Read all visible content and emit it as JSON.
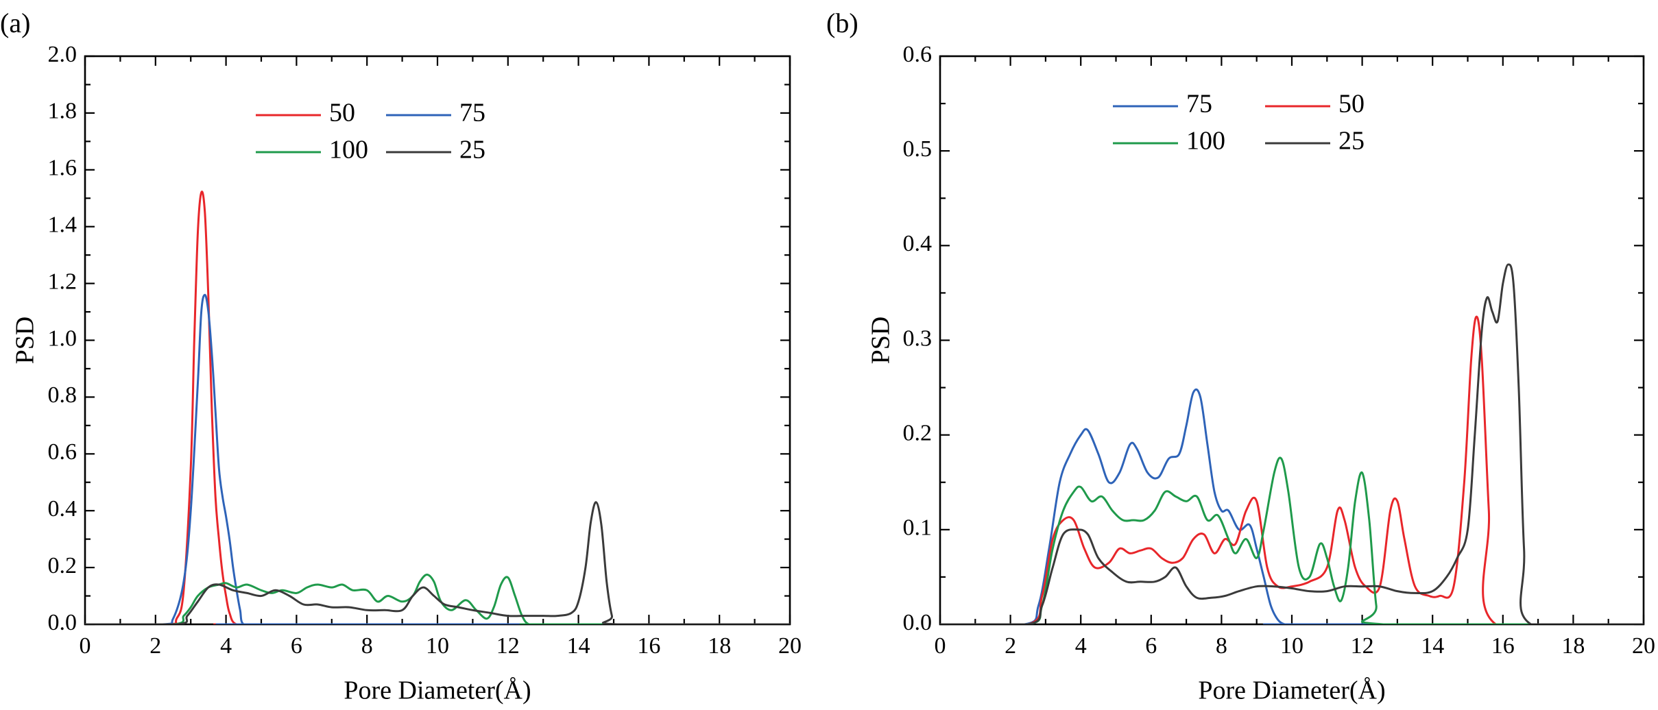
{
  "chart_data": [
    {
      "type": "line",
      "panel_label": "(a)",
      "xlabel": "Pore Diameter(Å)",
      "ylabel": "PSD",
      "xlim": [
        0,
        20
      ],
      "ylim": [
        0,
        2.0
      ],
      "xticks": [
        "0",
        "2",
        "4",
        "6",
        "8",
        "10",
        "12",
        "14",
        "16",
        "18",
        "20"
      ],
      "yticks": [
        "0.0",
        "0.2",
        "0.4",
        "0.6",
        "0.8",
        "1.0",
        "1.2",
        "1.4",
        "1.6",
        "1.8",
        "2.0"
      ],
      "legend_placement": "top-center",
      "legend_columns": 2,
      "series": [
        {
          "name": "50",
          "color": "#e8262a",
          "x": [
            0,
            2.3,
            2.6,
            2.8,
            3.0,
            3.1,
            3.2,
            3.3,
            3.4,
            3.5,
            3.6,
            3.7,
            3.8,
            3.9,
            4.0,
            4.1,
            4.3,
            5,
            20
          ],
          "y": [
            0,
            0,
            0.02,
            0.12,
            0.55,
            1.0,
            1.38,
            1.52,
            1.45,
            1.15,
            0.75,
            0.45,
            0.3,
            0.18,
            0.1,
            0.04,
            0,
            0,
            0
          ]
        },
        {
          "name": "75",
          "color": "#2e63b8",
          "x": [
            0,
            2.2,
            2.5,
            2.8,
            3.0,
            3.2,
            3.3,
            3.4,
            3.5,
            3.6,
            3.7,
            3.8,
            3.9,
            4.0,
            4.1,
            4.2,
            4.3,
            4.4,
            4.5,
            5,
            20
          ],
          "y": [
            0,
            0,
            0.02,
            0.15,
            0.4,
            0.85,
            1.1,
            1.16,
            1.1,
            0.95,
            0.75,
            0.55,
            0.45,
            0.38,
            0.3,
            0.2,
            0.12,
            0.05,
            0,
            0,
            0
          ]
        },
        {
          "name": "100",
          "color": "#1f9a4b",
          "x": [
            0,
            2.5,
            2.8,
            3.0,
            3.2,
            3.5,
            3.8,
            4.0,
            4.3,
            4.6,
            5.0,
            5.3,
            5.6,
            6.0,
            6.3,
            6.6,
            7.0,
            7.3,
            7.6,
            8.0,
            8.3,
            8.6,
            9.0,
            9.3,
            9.5,
            9.7,
            9.9,
            10.1,
            10.4,
            10.8,
            11.1,
            11.4,
            11.6,
            11.8,
            12.0,
            12.2,
            12.4,
            12.6,
            13,
            20
          ],
          "y": [
            0,
            0,
            0.03,
            0.06,
            0.1,
            0.13,
            0.14,
            0.145,
            0.13,
            0.14,
            0.12,
            0.11,
            0.12,
            0.11,
            0.13,
            0.14,
            0.13,
            0.14,
            0.12,
            0.12,
            0.08,
            0.1,
            0.08,
            0.1,
            0.15,
            0.175,
            0.15,
            0.08,
            0.05,
            0.085,
            0.05,
            0.02,
            0.06,
            0.14,
            0.165,
            0.1,
            0.03,
            0,
            0,
            0
          ]
        },
        {
          "name": "25",
          "color": "#3a3a3a",
          "x": [
            0,
            2.6,
            2.9,
            3.2,
            3.5,
            3.8,
            4.2,
            4.6,
            5.0,
            5.4,
            5.8,
            6.2,
            6.6,
            7.0,
            7.5,
            8.0,
            8.5,
            9.0,
            9.3,
            9.6,
            9.9,
            10.2,
            10.6,
            11.0,
            11.5,
            12.0,
            12.5,
            13.0,
            13.4,
            13.8,
            14.0,
            14.2,
            14.35,
            14.5,
            14.65,
            14.8,
            14.95,
            15.1,
            20
          ],
          "y": [
            0,
            0,
            0.03,
            0.08,
            0.13,
            0.14,
            0.12,
            0.11,
            0.1,
            0.12,
            0.1,
            0.07,
            0.07,
            0.06,
            0.06,
            0.05,
            0.05,
            0.05,
            0.1,
            0.13,
            0.1,
            0.07,
            0.06,
            0.05,
            0.04,
            0.03,
            0.03,
            0.03,
            0.03,
            0.04,
            0.08,
            0.2,
            0.36,
            0.43,
            0.35,
            0.15,
            0.03,
            0,
            0
          ]
        }
      ]
    },
    {
      "type": "line",
      "panel_label": "(b)",
      "xlabel": "Pore Diameter(Å)",
      "ylabel": "PSD",
      "xlim": [
        0,
        20
      ],
      "ylim": [
        0,
        0.6
      ],
      "xticks": [
        "0",
        "2",
        "4",
        "6",
        "8",
        "10",
        "12",
        "14",
        "16",
        "18",
        "20"
      ],
      "yticks": [
        "0.0",
        "0.1",
        "0.2",
        "0.3",
        "0.4",
        "0.5",
        "0.6"
      ],
      "legend_placement": "top-center",
      "legend_columns": 2,
      "series": [
        {
          "name": "75",
          "color": "#2e63b8",
          "x": [
            0,
            2.4,
            2.8,
            3.1,
            3.4,
            3.7,
            4.0,
            4.2,
            4.5,
            4.8,
            5.1,
            5.4,
            5.6,
            5.9,
            6.2,
            6.5,
            6.8,
            7.0,
            7.2,
            7.4,
            7.6,
            7.8,
            8.0,
            8.2,
            8.5,
            8.8,
            9.0,
            9.2,
            9.4,
            9.6,
            9.8,
            10,
            20
          ],
          "y": [
            0,
            0,
            0.02,
            0.08,
            0.15,
            0.18,
            0.2,
            0.205,
            0.18,
            0.15,
            0.16,
            0.19,
            0.185,
            0.16,
            0.155,
            0.175,
            0.18,
            0.21,
            0.245,
            0.24,
            0.19,
            0.14,
            0.12,
            0.12,
            0.1,
            0.105,
            0.08,
            0.05,
            0.02,
            0.005,
            0,
            0,
            0
          ]
        },
        {
          "name": "50",
          "color": "#e8262a",
          "x": [
            0,
            2.5,
            2.9,
            3.2,
            3.5,
            3.8,
            4.1,
            4.4,
            4.8,
            5.1,
            5.4,
            5.7,
            6.0,
            6.3,
            6.6,
            6.9,
            7.2,
            7.5,
            7.8,
            8.1,
            8.4,
            8.7,
            9.0,
            9.3,
            9.6,
            10.0,
            10.5,
            11.0,
            11.3,
            11.5,
            11.8,
            12.1,
            12.5,
            12.8,
            13.0,
            13.2,
            13.5,
            13.9,
            14.2,
            14.6,
            14.9,
            15.1,
            15.25,
            15.4,
            15.6,
            15.8,
            20
          ],
          "y": [
            0,
            0,
            0.03,
            0.09,
            0.11,
            0.11,
            0.08,
            0.06,
            0.065,
            0.08,
            0.075,
            0.078,
            0.08,
            0.07,
            0.065,
            0.07,
            0.09,
            0.095,
            0.075,
            0.09,
            0.085,
            0.12,
            0.13,
            0.06,
            0.04,
            0.04,
            0.045,
            0.06,
            0.12,
            0.11,
            0.06,
            0.04,
            0.04,
            0.12,
            0.13,
            0.09,
            0.04,
            0.03,
            0.03,
            0.04,
            0.15,
            0.28,
            0.325,
            0.28,
            0.12,
            0,
            0
          ]
        },
        {
          "name": "100",
          "color": "#1f9a4b",
          "x": [
            0,
            2.5,
            2.9,
            3.2,
            3.5,
            3.8,
            4.0,
            4.3,
            4.6,
            4.9,
            5.2,
            5.5,
            5.8,
            6.1,
            6.4,
            6.7,
            7.0,
            7.3,
            7.6,
            7.9,
            8.2,
            8.4,
            8.7,
            9.0,
            9.2,
            9.5,
            9.7,
            9.9,
            10.2,
            10.5,
            10.8,
            11.0,
            11.2,
            11.4,
            11.6,
            11.8,
            12.0,
            12.2,
            12.4,
            12.6,
            20
          ],
          "y": [
            0,
            0,
            0.02,
            0.08,
            0.12,
            0.14,
            0.145,
            0.13,
            0.135,
            0.12,
            0.11,
            0.11,
            0.11,
            0.12,
            0.14,
            0.135,
            0.13,
            0.135,
            0.11,
            0.115,
            0.09,
            0.075,
            0.09,
            0.07,
            0.1,
            0.16,
            0.175,
            0.14,
            0.06,
            0.05,
            0.085,
            0.07,
            0.04,
            0.025,
            0.06,
            0.13,
            0.16,
            0.11,
            0.02,
            0,
            0
          ]
        },
        {
          "name": "25",
          "color": "#3a3a3a",
          "x": [
            0,
            2.5,
            2.9,
            3.2,
            3.5,
            3.9,
            4.2,
            4.5,
            4.9,
            5.3,
            5.7,
            6.1,
            6.4,
            6.7,
            7.0,
            7.3,
            7.7,
            8.1,
            8.5,
            9.0,
            9.5,
            10.0,
            10.5,
            11.0,
            11.5,
            12.0,
            12.5,
            13.0,
            13.5,
            14.0,
            14.4,
            14.7,
            15.0,
            15.2,
            15.4,
            15.55,
            15.7,
            15.85,
            16.0,
            16.15,
            16.3,
            16.45,
            16.6,
            16.8,
            20
          ],
          "y": [
            0,
            0,
            0.02,
            0.06,
            0.095,
            0.1,
            0.095,
            0.07,
            0.055,
            0.045,
            0.045,
            0.045,
            0.05,
            0.06,
            0.04,
            0.028,
            0.028,
            0.03,
            0.035,
            0.04,
            0.04,
            0.038,
            0.035,
            0.035,
            0.04,
            0.04,
            0.04,
            0.035,
            0.033,
            0.035,
            0.05,
            0.07,
            0.1,
            0.2,
            0.31,
            0.345,
            0.33,
            0.32,
            0.36,
            0.38,
            0.36,
            0.25,
            0.08,
            0,
            0
          ]
        }
      ]
    }
  ]
}
